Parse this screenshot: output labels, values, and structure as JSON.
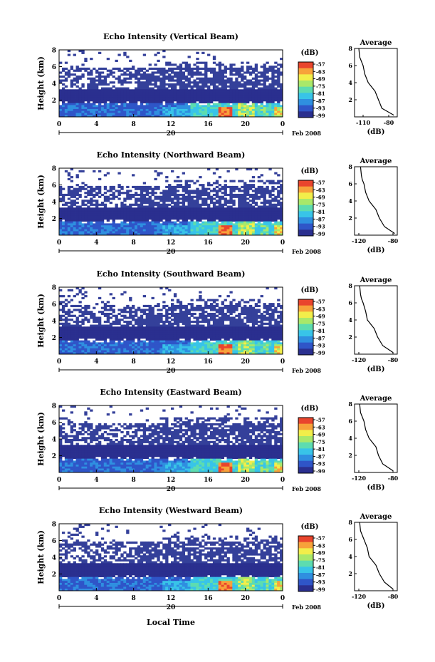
{
  "figure": {
    "xlabel": "Local Time",
    "date_label": "Feb 2008",
    "day_label": "20",
    "cbar_unit": "(dB)",
    "avg_title": "Average",
    "avg_xlabel": "(dB)",
    "ylabel": "Height (km)",
    "x_ticks": [
      "0",
      "4",
      "8",
      "12",
      "16",
      "20",
      "0"
    ],
    "colors": {
      "background": "#ffffff",
      "noise_floor": "#34409a",
      "colormap": [
        "#2a2f8f",
        "#2f55c8",
        "#2f8fe0",
        "#38c4e8",
        "#5ddcb0",
        "#a9e86a",
        "#f2ee4a",
        "#f7a23a",
        "#e9452d"
      ]
    }
  },
  "chart_data": [
    {
      "type": "heatmap",
      "title": "Echo Intensity (Vertical Beam)",
      "ylim": [
        0,
        8
      ],
      "y_ticks": [
        "2",
        "4",
        "6",
        "8"
      ],
      "xlim": [
        0,
        24
      ],
      "cbar_ticks": [
        "-57",
        "-63",
        "-69",
        "-75",
        "-81",
        "-87",
        "-93",
        "-99"
      ],
      "avg_ticks": [
        "-110",
        "-80"
      ],
      "avg_xlim": [
        -120,
        -70
      ],
      "avg_profile": {
        "height": [
          0.2,
          1,
          2,
          3,
          3.5,
          4,
          5,
          6,
          6.5,
          7,
          8
        ],
        "db": [
          -74,
          -88,
          -92,
          -96,
          -100,
          -104,
          -108,
          -110,
          -112,
          -114,
          -115
        ]
      }
    },
    {
      "type": "heatmap",
      "title": "Echo Intensity (Northward Beam)",
      "ylim": [
        0,
        8
      ],
      "y_ticks": [
        "2",
        "4",
        "6",
        "8"
      ],
      "xlim": [
        0,
        24
      ],
      "cbar_ticks": [
        "-57",
        "-63",
        "-69",
        "-75",
        "-81",
        "-87",
        "-93",
        "-99"
      ],
      "avg_ticks": [
        "-120",
        "-80"
      ],
      "avg_xlim": [
        -125,
        -75
      ],
      "avg_profile": {
        "height": [
          0.2,
          1,
          2,
          3,
          3.5,
          4,
          5,
          6,
          6.5,
          7,
          8
        ],
        "db": [
          -78,
          -90,
          -96,
          -100,
          -104,
          -108,
          -112,
          -114,
          -116,
          -117,
          -118
        ]
      }
    },
    {
      "type": "heatmap",
      "title": "Echo Intensity (Southward Beam)",
      "ylim": [
        0,
        8
      ],
      "y_ticks": [
        "2",
        "4",
        "6",
        "8"
      ],
      "xlim": [
        0,
        24
      ],
      "cbar_ticks": [
        "-57",
        "-63",
        "-69",
        "-75",
        "-81",
        "-87",
        "-93",
        "-99"
      ],
      "avg_ticks": [
        "-120",
        "-80"
      ],
      "avg_xlim": [
        -125,
        -75
      ],
      "avg_profile": {
        "height": [
          0.2,
          1,
          2,
          3,
          3.5,
          4,
          5,
          6,
          6.5,
          7,
          8
        ],
        "db": [
          -80,
          -92,
          -98,
          -102,
          -106,
          -110,
          -112,
          -115,
          -117,
          -118,
          -119
        ]
      }
    },
    {
      "type": "heatmap",
      "title": "Echo Intensity (Eastward Beam)",
      "ylim": [
        0,
        8
      ],
      "y_ticks": [
        "2",
        "4",
        "6",
        "8"
      ],
      "xlim": [
        0,
        24
      ],
      "cbar_ticks": [
        "-57",
        "-63",
        "-69",
        "-75",
        "-81",
        "-87",
        "-93",
        "-99"
      ],
      "avg_ticks": [
        "-120",
        "-80"
      ],
      "avg_xlim": [
        -125,
        -75
      ],
      "avg_profile": {
        "height": [
          0.2,
          1,
          2,
          3,
          3.5,
          4,
          5,
          6,
          6.5,
          7,
          8
        ],
        "db": [
          -80,
          -92,
          -97,
          -100,
          -104,
          -108,
          -112,
          -114,
          -116,
          -118,
          -119
        ]
      }
    },
    {
      "type": "heatmap",
      "title": "Echo Intensity (Westward Beam)",
      "ylim": [
        0,
        8
      ],
      "y_ticks": [
        "2",
        "4",
        "6",
        "8"
      ],
      "xlim": [
        0,
        24
      ],
      "cbar_ticks": [
        "-57",
        "-63",
        "-69",
        "-75",
        "-81",
        "-87",
        "-93",
        "-99"
      ],
      "avg_ticks": [
        "-120",
        "-80"
      ],
      "avg_xlim": [
        -125,
        -75
      ],
      "avg_profile": {
        "height": [
          0.2,
          1,
          2,
          3,
          3.5,
          4,
          5,
          6,
          6.5,
          7,
          8
        ],
        "db": [
          -80,
          -90,
          -96,
          -100,
          -104,
          -108,
          -110,
          -114,
          -116,
          -118,
          -119
        ]
      }
    }
  ]
}
